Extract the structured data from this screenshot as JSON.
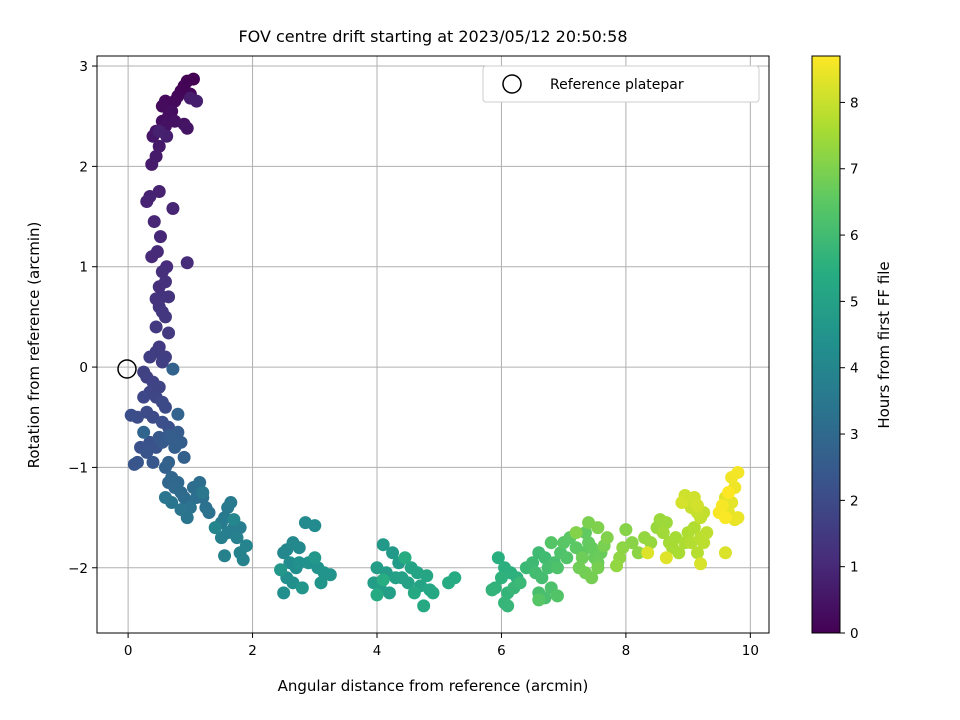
{
  "chart_data": {
    "type": "scatter",
    "title": "FOV centre drift starting at 2023/05/12 20:50:58",
    "xlabel": "Angular distance from reference (arcmin)",
    "ylabel": "Rotation from reference (arcmin)",
    "xlim": [
      -0.5,
      10.3
    ],
    "ylim": [
      -2.65,
      3.1
    ],
    "xticks": [
      0,
      2,
      4,
      6,
      8,
      10
    ],
    "yticks": [
      -2,
      -1,
      0,
      1,
      2,
      3
    ],
    "grid": true,
    "legend": {
      "location": "upper right",
      "entries": [
        "Reference platepar"
      ]
    },
    "colorbar": {
      "label": "Hours from first FF file",
      "range": [
        0,
        8.7
      ],
      "ticks": [
        0,
        1,
        2,
        3,
        4,
        5,
        6,
        7,
        8
      ],
      "colormap": "viridis"
    },
    "reference_point": {
      "x": 0,
      "y": 0,
      "label": "Reference platepar"
    },
    "series": [
      {
        "points": [
          [
            1.05,
            2.87
          ],
          [
            0.95,
            2.85
          ],
          [
            0.9,
            2.8
          ],
          [
            0.85,
            2.75
          ],
          [
            1.0,
            2.72
          ],
          [
            0.8,
            2.7
          ],
          [
            0.75,
            2.65
          ],
          [
            0.6,
            2.65
          ],
          [
            0.55,
            2.6
          ],
          [
            0.7,
            2.55
          ],
          [
            0.65,
            2.5
          ],
          [
            0.55,
            2.45
          ],
          [
            0.75,
            2.45
          ],
          [
            0.6,
            2.4
          ],
          [
            0.9,
            2.42
          ],
          [
            0.95,
            2.38
          ],
          [
            0.45,
            2.35
          ],
          [
            0.4,
            2.3
          ],
          [
            0.5,
            2.2
          ],
          [
            0.45,
            2.1
          ],
          [
            0.38,
            2.02
          ],
          [
            1.0,
            2.68
          ],
          [
            1.1,
            2.65
          ],
          [
            0.62,
            2.3
          ],
          [
            0.5,
            2.35
          ],
          [
            0.5,
            1.75
          ],
          [
            0.35,
            1.7
          ],
          [
            0.3,
            1.65
          ],
          [
            0.72,
            1.58
          ],
          [
            0.42,
            1.45
          ],
          [
            0.52,
            1.3
          ],
          [
            0.47,
            1.15
          ],
          [
            0.38,
            1.1
          ],
          [
            0.95,
            1.04
          ],
          [
            0.62,
            1.0
          ],
          [
            0.55,
            0.95
          ],
          [
            0.5,
            0.8
          ],
          [
            0.6,
            0.85
          ],
          [
            0.55,
            0.7
          ],
          [
            0.45,
            0.68
          ],
          [
            0.65,
            0.7
          ],
          [
            0.5,
            0.6
          ],
          [
            0.55,
            0.55
          ],
          [
            0.6,
            0.5
          ],
          [
            0.45,
            0.4
          ],
          [
            0.65,
            0.34
          ],
          [
            0.5,
            0.2
          ],
          [
            0.45,
            0.15
          ],
          [
            0.35,
            0.1
          ],
          [
            0.6,
            0.1
          ],
          [
            0.55,
            0.05
          ],
          [
            0.25,
            -0.05
          ],
          [
            0.3,
            -0.1
          ],
          [
            0.4,
            -0.15
          ],
          [
            0.5,
            -0.2
          ],
          [
            0.35,
            -0.25
          ],
          [
            0.45,
            -0.3
          ],
          [
            0.25,
            -0.3
          ],
          [
            0.55,
            -0.35
          ],
          [
            0.6,
            -0.4
          ],
          [
            0.3,
            -0.45
          ],
          [
            0.4,
            -0.5
          ],
          [
            0.15,
            -0.5
          ],
          [
            0.05,
            -0.48
          ],
          [
            0.55,
            -0.55
          ],
          [
            0.65,
            -0.6
          ],
          [
            0.2,
            -0.8
          ],
          [
            0.35,
            -0.75
          ],
          [
            0.45,
            -0.8
          ],
          [
            0.3,
            -0.85
          ],
          [
            0.15,
            -0.95
          ],
          [
            0.1,
            -0.97
          ],
          [
            0.4,
            -0.95
          ],
          [
            0.5,
            -0.7
          ],
          [
            0.55,
            -0.75
          ],
          [
            0.6,
            -0.72
          ],
          [
            0.65,
            -0.68
          ],
          [
            0.8,
            -0.65
          ],
          [
            0.85,
            -0.75
          ],
          [
            0.7,
            -0.7
          ],
          [
            0.75,
            -0.8
          ],
          [
            0.9,
            -0.9
          ],
          [
            0.6,
            -1.0
          ],
          [
            0.65,
            -0.95
          ],
          [
            0.72,
            -0.02
          ],
          [
            0.8,
            -0.47
          ],
          [
            0.25,
            -0.65
          ],
          [
            0.7,
            -1.1
          ],
          [
            0.65,
            -1.15
          ],
          [
            0.8,
            -1.15
          ],
          [
            0.75,
            -1.2
          ],
          [
            0.85,
            -1.25
          ],
          [
            0.9,
            -1.3
          ],
          [
            0.95,
            -1.35
          ],
          [
            1.05,
            -1.2
          ],
          [
            1.15,
            -1.15
          ],
          [
            1.1,
            -1.3
          ],
          [
            1.2,
            -1.3
          ],
          [
            1.25,
            -1.4
          ],
          [
            1.3,
            -1.45
          ],
          [
            1.0,
            -1.4
          ],
          [
            0.95,
            -1.5
          ],
          [
            0.85,
            -1.42
          ],
          [
            0.7,
            -1.35
          ],
          [
            0.6,
            -1.3
          ],
          [
            1.2,
            -1.25
          ],
          [
            1.55,
            -1.5
          ],
          [
            1.6,
            -1.4
          ],
          [
            1.65,
            -1.35
          ],
          [
            1.5,
            -1.55
          ],
          [
            1.7,
            -1.6
          ],
          [
            1.8,
            -1.6
          ],
          [
            1.6,
            -1.65
          ],
          [
            1.5,
            -1.7
          ],
          [
            1.75,
            -1.7
          ],
          [
            1.55,
            -1.88
          ],
          [
            1.8,
            -1.85
          ],
          [
            1.85,
            -1.92
          ],
          [
            1.9,
            -1.78
          ],
          [
            1.4,
            -1.6
          ],
          [
            1.7,
            -1.52
          ],
          [
            2.5,
            -1.85
          ],
          [
            2.55,
            -1.82
          ],
          [
            2.65,
            -1.75
          ],
          [
            2.75,
            -1.8
          ],
          [
            2.85,
            -1.55
          ],
          [
            3.0,
            -1.58
          ],
          [
            2.6,
            -1.95
          ],
          [
            2.7,
            -2.0
          ],
          [
            2.55,
            -2.1
          ],
          [
            2.5,
            -2.25
          ],
          [
            2.65,
            -2.15
          ],
          [
            2.75,
            -1.95
          ],
          [
            2.9,
            -1.95
          ],
          [
            3.05,
            -2.0
          ],
          [
            3.15,
            -2.05
          ],
          [
            3.25,
            -2.07
          ],
          [
            3.1,
            -2.15
          ],
          [
            2.8,
            -2.2
          ],
          [
            3.0,
            -1.9
          ],
          [
            2.45,
            -2.02
          ],
          [
            4.1,
            -1.77
          ],
          [
            4.25,
            -1.85
          ],
          [
            4.35,
            -1.95
          ],
          [
            4.0,
            -2.0
          ],
          [
            4.15,
            -2.05
          ],
          [
            3.95,
            -2.15
          ],
          [
            4.05,
            -2.2
          ],
          [
            4.2,
            -2.25
          ],
          [
            4.3,
            -2.1
          ],
          [
            4.4,
            -2.1
          ],
          [
            4.5,
            -2.15
          ],
          [
            4.55,
            -2.0
          ],
          [
            4.65,
            -2.05
          ],
          [
            4.7,
            -2.18
          ],
          [
            4.8,
            -2.08
          ],
          [
            4.85,
            -2.22
          ],
          [
            4.9,
            -2.25
          ],
          [
            4.75,
            -2.38
          ],
          [
            4.6,
            -2.25
          ],
          [
            4.0,
            -2.27
          ],
          [
            5.15,
            -2.15
          ],
          [
            5.25,
            -2.1
          ],
          [
            4.45,
            -1.9
          ],
          [
            4.1,
            -2.12
          ],
          [
            5.95,
            -1.9
          ],
          [
            6.05,
            -2.0
          ],
          [
            6.15,
            -2.05
          ],
          [
            6.25,
            -2.1
          ],
          [
            6.0,
            -2.1
          ],
          [
            5.9,
            -2.2
          ],
          [
            5.85,
            -2.22
          ],
          [
            6.1,
            -2.25
          ],
          [
            6.05,
            -2.35
          ],
          [
            6.1,
            -2.38
          ],
          [
            6.2,
            -2.2
          ],
          [
            6.3,
            -2.15
          ],
          [
            6.4,
            -2.0
          ],
          [
            6.5,
            -1.95
          ],
          [
            6.6,
            -1.85
          ],
          [
            6.7,
            -1.9
          ],
          [
            6.55,
            -2.05
          ],
          [
            6.65,
            -2.1
          ],
          [
            6.75,
            -2.0
          ],
          [
            6.85,
            -1.95
          ],
          [
            6.6,
            -2.25
          ],
          [
            6.7,
            -2.3
          ],
          [
            6.8,
            -2.2
          ],
          [
            6.9,
            -2.0
          ],
          [
            6.95,
            -1.85
          ],
          [
            7.05,
            -1.9
          ],
          [
            6.9,
            -2.28
          ],
          [
            6.8,
            -1.75
          ],
          [
            6.6,
            -2.32
          ],
          [
            7.0,
            -1.75
          ],
          [
            7.1,
            -1.7
          ],
          [
            7.2,
            -1.8
          ],
          [
            7.3,
            -1.85
          ],
          [
            7.35,
            -1.65
          ],
          [
            7.4,
            -1.75
          ],
          [
            7.45,
            -1.8
          ],
          [
            7.5,
            -1.9
          ],
          [
            7.6,
            -1.85
          ],
          [
            7.55,
            -1.95
          ],
          [
            7.3,
            -1.9
          ],
          [
            7.25,
            -2.0
          ],
          [
            7.35,
            -2.05
          ],
          [
            7.45,
            -2.1
          ],
          [
            7.55,
            -2.0
          ],
          [
            7.65,
            -1.78
          ],
          [
            7.4,
            -1.55
          ],
          [
            7.55,
            -1.6
          ],
          [
            7.7,
            -1.7
          ],
          [
            7.2,
            -1.65
          ],
          [
            8.0,
            -1.62
          ],
          [
            8.1,
            -1.75
          ],
          [
            8.2,
            -1.85
          ],
          [
            7.95,
            -1.8
          ],
          [
            7.9,
            -1.9
          ],
          [
            7.85,
            -1.98
          ],
          [
            8.3,
            -1.7
          ],
          [
            8.4,
            -1.75
          ],
          [
            8.5,
            -1.6
          ],
          [
            8.55,
            -1.52
          ],
          [
            8.65,
            -1.55
          ],
          [
            8.6,
            -1.65
          ],
          [
            8.7,
            -1.75
          ],
          [
            8.8,
            -1.7
          ],
          [
            8.75,
            -1.8
          ],
          [
            8.85,
            -1.85
          ],
          [
            8.95,
            -1.75
          ],
          [
            9.0,
            -1.65
          ],
          [
            9.1,
            -1.6
          ],
          [
            9.05,
            -1.75
          ],
          [
            9.15,
            -1.85
          ],
          [
            9.2,
            -1.7
          ],
          [
            9.25,
            -1.75
          ],
          [
            9.3,
            -1.65
          ],
          [
            9.2,
            -1.5
          ],
          [
            9.25,
            -1.45
          ],
          [
            9.15,
            -1.45
          ],
          [
            9.05,
            -1.4
          ],
          [
            9.0,
            -1.33
          ],
          [
            8.95,
            -1.28
          ],
          [
            9.1,
            -1.3
          ],
          [
            9.15,
            -1.38
          ],
          [
            8.9,
            -1.35
          ],
          [
            9.2,
            -1.96
          ],
          [
            9.6,
            -1.85
          ],
          [
            8.35,
            -1.85
          ],
          [
            8.65,
            -1.9
          ],
          [
            9.6,
            -1.3
          ],
          [
            9.7,
            -1.35
          ],
          [
            9.65,
            -1.45
          ],
          [
            9.75,
            -1.52
          ],
          [
            9.8,
            -1.5
          ],
          [
            9.75,
            -1.2
          ],
          [
            9.7,
            -1.1
          ],
          [
            9.8,
            -1.05
          ],
          [
            9.55,
            -1.38
          ],
          [
            9.5,
            -1.45
          ],
          [
            9.6,
            -1.5
          ],
          [
            9.65,
            -1.25
          ]
        ],
        "colors": [
          0.0,
          8.7
        ]
      }
    ]
  }
}
